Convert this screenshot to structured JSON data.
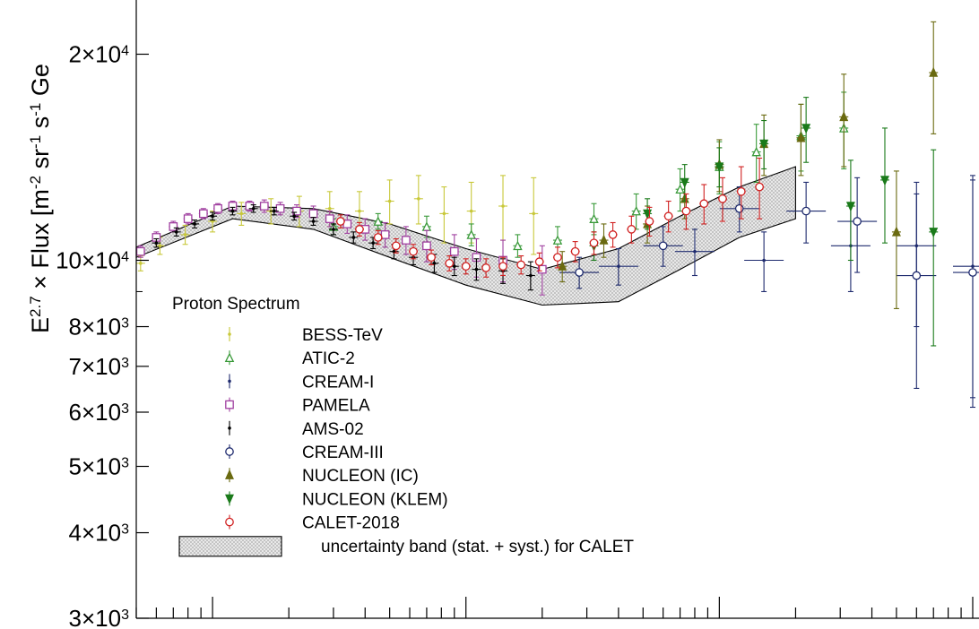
{
  "chart_data": {
    "type": "scatter",
    "title": "",
    "ylabel_main": "E",
    "ylabel_sup": "2.7",
    "ylabel_mid": " × Flux [m",
    "ylabel_sup2": "-2",
    "ylabel_mid2": " sr",
    "ylabel_sup3": "-1",
    "ylabel_mid3": " s",
    "ylabel_sup4": "-1",
    "ylabel_tail": " Ge",
    "xlabel": "",
    "y_scale": "log",
    "x_scale": "log",
    "xlim_GeV": [
      50,
      100000
    ],
    "ylim": [
      3000,
      24000
    ],
    "grid": false,
    "legend_title": "Proton Spectrum",
    "legend_placement": "lower-left",
    "y_ticks": [
      {
        "value": 20000,
        "mant": "2",
        "exp": "4"
      },
      {
        "value": 10000,
        "mant": "10",
        "exp": "4"
      },
      {
        "value": 8000,
        "mant": "8",
        "exp": "3"
      },
      {
        "value": 7000,
        "mant": "7",
        "exp": "3"
      },
      {
        "value": 6000,
        "mant": "6",
        "exp": "3"
      },
      {
        "value": 5000,
        "mant": "5",
        "exp": "3"
      },
      {
        "value": 4000,
        "mant": "4",
        "exp": "3"
      },
      {
        "value": 3000,
        "mant": "3",
        "exp": "3"
      }
    ],
    "band": {
      "name": "uncertainty band (stat. + syst.) for CALET",
      "upper": [
        [
          50,
          10450
        ],
        [
          120,
          12000
        ],
        [
          250,
          11900
        ],
        [
          500,
          11300
        ],
        [
          1000,
          10400
        ],
        [
          2000,
          9700
        ],
        [
          4000,
          10400
        ],
        [
          7000,
          11600
        ],
        [
          12000,
          12800
        ],
        [
          20000,
          13700
        ]
      ],
      "lower": [
        [
          50,
          10100
        ],
        [
          120,
          11500
        ],
        [
          250,
          11100
        ],
        [
          500,
          10100
        ],
        [
          1000,
          9200
        ],
        [
          2000,
          8600
        ],
        [
          4000,
          8700
        ],
        [
          7000,
          9700
        ],
        [
          12000,
          10800
        ],
        [
          20000,
          11500
        ]
      ]
    },
    "series": [
      {
        "name": "BESS-TeV",
        "marker": "cross",
        "color": "#c8c83a",
        "points": [
          [
            52,
            9900,
            250
          ],
          [
            62,
            10500,
            300
          ],
          [
            78,
            10900,
            350
          ],
          [
            100,
            11400,
            400
          ],
          [
            130,
            11700,
            450
          ],
          [
            170,
            11800,
            500
          ],
          [
            220,
            11800,
            600
          ],
          [
            290,
            11900,
            700
          ],
          [
            380,
            11800,
            800
          ],
          [
            500,
            12200,
            900
          ],
          [
            650,
            12300,
            1000
          ],
          [
            820,
            11700,
            1100
          ],
          [
            1050,
            11800,
            1200
          ],
          [
            1400,
            12000,
            1300
          ],
          [
            1850,
            11700,
            1500
          ]
        ]
      },
      {
        "name": "ATIC-2",
        "marker": "triangle-open",
        "color": "#3a9a3a",
        "points": [
          [
            300,
            11200,
            300
          ],
          [
            450,
            11400,
            300
          ],
          [
            700,
            11200,
            400
          ],
          [
            1050,
            10900,
            400
          ],
          [
            1600,
            10500,
            400
          ],
          [
            2300,
            10700,
            500
          ],
          [
            3200,
            11500,
            600
          ],
          [
            4700,
            11800,
            700
          ],
          [
            7000,
            12700,
            900
          ],
          [
            10000,
            13700,
            1200
          ],
          [
            14000,
            14400,
            1400
          ],
          [
            21000,
            15200,
            1700
          ],
          [
            31000,
            15600,
            2000
          ]
        ]
      },
      {
        "name": "CREAM-I",
        "marker": "cross",
        "color": "#1e2a6e",
        "points": [
          [
            4000,
            9800,
            600
          ],
          [
            8000,
            10300,
            800
          ],
          [
            15000,
            10000,
            1000
          ],
          [
            33000,
            10500,
            1500
          ],
          [
            60000,
            10500,
            2500
          ],
          [
            100000,
            9800,
            3500
          ]
        ]
      },
      {
        "name": "PAMELA",
        "marker": "square-open",
        "color": "#a040a0",
        "points": [
          [
            52,
            10300,
            200
          ],
          [
            60,
            10800,
            200
          ],
          [
            70,
            11200,
            200
          ],
          [
            80,
            11500,
            200
          ],
          [
            92,
            11700,
            200
          ],
          [
            105,
            11900,
            200
          ],
          [
            120,
            12000,
            200
          ],
          [
            140,
            12000,
            200
          ],
          [
            160,
            12000,
            250
          ],
          [
            185,
            11900,
            250
          ],
          [
            215,
            11800,
            250
          ],
          [
            250,
            11700,
            300
          ],
          [
            290,
            11500,
            300
          ],
          [
            340,
            11300,
            350
          ],
          [
            400,
            11100,
            400
          ],
          [
            480,
            10900,
            450
          ],
          [
            580,
            10700,
            500
          ],
          [
            700,
            10500,
            550
          ],
          [
            900,
            10300,
            600
          ],
          [
            1100,
            10100,
            650
          ],
          [
            1400,
            10000,
            700
          ],
          [
            2000,
            9700,
            800
          ]
        ]
      },
      {
        "name": "AMS-02",
        "marker": "cross",
        "color": "#000000",
        "points": [
          [
            60,
            10600,
            150
          ],
          [
            72,
            11000,
            150
          ],
          [
            85,
            11300,
            150
          ],
          [
            100,
            11600,
            150
          ],
          [
            120,
            11800,
            150
          ],
          [
            145,
            11900,
            150
          ],
          [
            175,
            11800,
            150
          ],
          [
            210,
            11600,
            150
          ],
          [
            250,
            11400,
            150
          ],
          [
            300,
            11100,
            200
          ],
          [
            360,
            10800,
            200
          ],
          [
            430,
            10600,
            200
          ],
          [
            520,
            10300,
            250
          ],
          [
            620,
            10100,
            250
          ],
          [
            750,
            9900,
            300
          ],
          [
            900,
            9800,
            300
          ],
          [
            1100,
            9700,
            350
          ],
          [
            1400,
            9650,
            400
          ],
          [
            1800,
            9500,
            450
          ]
        ]
      },
      {
        "name": "CREAM-III",
        "marker": "circle-open",
        "color": "#1e2a6e",
        "points": [
          [
            2800,
            9600,
            500
          ],
          [
            6000,
            10500,
            700
          ],
          [
            12000,
            11900,
            900
          ],
          [
            22000,
            11800,
            1200
          ],
          [
            35000,
            11400,
            1800
          ],
          [
            60000,
            9500,
            3000
          ],
          [
            100000,
            9600,
            3500
          ]
        ]
      },
      {
        "name": "NUCLEON (IC)",
        "marker": "triangle-filled",
        "color": "#6a6a10",
        "points": [
          [
            2400,
            9800,
            500
          ],
          [
            3500,
            10700,
            600
          ],
          [
            5200,
            11300,
            700
          ],
          [
            7300,
            12300,
            800
          ],
          [
            10000,
            13800,
            1200
          ],
          [
            15000,
            14800,
            1500
          ],
          [
            21000,
            15100,
            1800
          ],
          [
            31000,
            16200,
            2500
          ],
          [
            50000,
            11000,
            2500
          ],
          [
            70000,
            18800,
            3500
          ]
        ]
      },
      {
        "name": "NUCLEON (KLEM)",
        "marker": "triangle-down",
        "color": "#1a7a1a",
        "points": [
          [
            3200,
            10500,
            500
          ],
          [
            5200,
            11700,
            600
          ],
          [
            7300,
            13000,
            800
          ],
          [
            10000,
            13700,
            900
          ],
          [
            15000,
            14800,
            1200
          ],
          [
            22000,
            15600,
            1700
          ],
          [
            33000,
            12000,
            2000
          ],
          [
            45000,
            13100,
            2500
          ],
          [
            70000,
            11000,
            3500
          ]
        ]
      },
      {
        "name": "CALET-2018",
        "marker": "circle-open",
        "color": "#d02020",
        "points": [
          [
            320,
            11400,
            250
          ],
          [
            380,
            11100,
            250
          ],
          [
            450,
            10800,
            250
          ],
          [
            530,
            10500,
            250
          ],
          [
            620,
            10300,
            250
          ],
          [
            730,
            10100,
            250
          ],
          [
            860,
            9900,
            250
          ],
          [
            1000,
            9800,
            250
          ],
          [
            1200,
            9750,
            300
          ],
          [
            1400,
            9800,
            300
          ],
          [
            1650,
            9850,
            300
          ],
          [
            1950,
            9950,
            300
          ],
          [
            2300,
            10100,
            350
          ],
          [
            2700,
            10300,
            350
          ],
          [
            3200,
            10600,
            400
          ],
          [
            3800,
            10900,
            450
          ],
          [
            4500,
            11100,
            500
          ],
          [
            5300,
            11400,
            550
          ],
          [
            6300,
            11600,
            600
          ],
          [
            7400,
            11800,
            700
          ],
          [
            8700,
            12100,
            800
          ],
          [
            10300,
            12300,
            900
          ],
          [
            12200,
            12600,
            1100
          ],
          [
            14400,
            12800,
            1300
          ]
        ]
      }
    ]
  }
}
